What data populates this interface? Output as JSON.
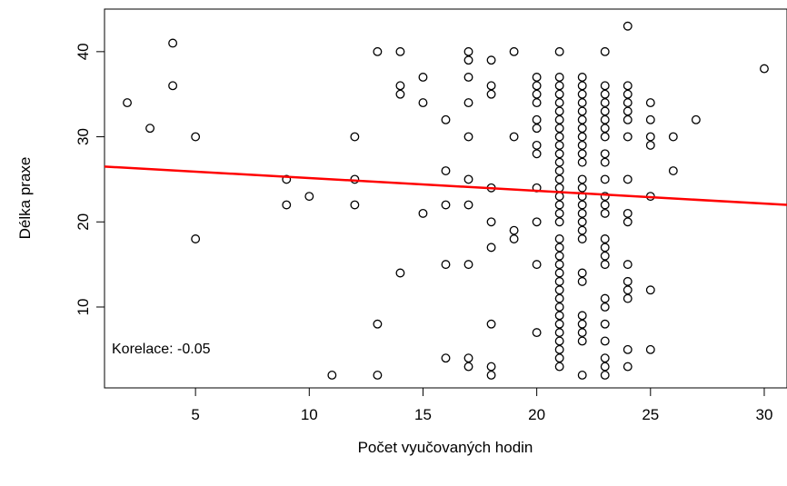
{
  "chart_data": {
    "type": "scatter",
    "xlabel": "Počet vyučovaných hodin",
    "ylabel": "Délka praxe",
    "annotation": "Korelace: -0.05",
    "xlim": [
      1,
      31
    ],
    "ylim": [
      0.5,
      45
    ],
    "xticks": [
      5,
      10,
      15,
      20,
      25,
      30
    ],
    "yticks": [
      10,
      20,
      30,
      40
    ],
    "regression": {
      "color": "#ff0000",
      "y_at_1": 26.5,
      "y_at_31": 22.0
    },
    "points": [
      [
        2,
        34
      ],
      [
        3,
        31
      ],
      [
        4,
        41
      ],
      [
        4,
        36
      ],
      [
        5,
        30
      ],
      [
        5,
        18
      ],
      [
        9,
        25
      ],
      [
        9,
        22
      ],
      [
        10,
        23
      ],
      [
        11,
        2
      ],
      [
        12,
        30
      ],
      [
        12,
        25
      ],
      [
        12,
        22
      ],
      [
        13,
        40
      ],
      [
        13,
        8
      ],
      [
        13,
        2
      ],
      [
        14,
        40
      ],
      [
        14,
        36
      ],
      [
        14,
        35
      ],
      [
        14,
        14
      ],
      [
        15,
        37
      ],
      [
        15,
        34
      ],
      [
        15,
        21
      ],
      [
        16,
        32
      ],
      [
        16,
        26
      ],
      [
        16,
        22
      ],
      [
        16,
        15
      ],
      [
        16,
        4
      ],
      [
        17,
        40
      ],
      [
        17,
        39
      ],
      [
        17,
        37
      ],
      [
        17,
        34
      ],
      [
        17,
        30
      ],
      [
        17,
        25
      ],
      [
        17,
        22
      ],
      [
        17,
        15
      ],
      [
        17,
        4
      ],
      [
        17,
        3
      ],
      [
        18,
        39
      ],
      [
        18,
        36
      ],
      [
        18,
        35
      ],
      [
        18,
        24
      ],
      [
        18,
        20
      ],
      [
        18,
        17
      ],
      [
        18,
        8
      ],
      [
        18,
        3
      ],
      [
        18,
        2
      ],
      [
        19,
        40
      ],
      [
        19,
        30
      ],
      [
        19,
        19
      ],
      [
        19,
        18
      ],
      [
        20,
        37
      ],
      [
        20,
        36
      ],
      [
        20,
        35
      ],
      [
        20,
        34
      ],
      [
        20,
        32
      ],
      [
        20,
        31
      ],
      [
        20,
        29
      ],
      [
        20,
        28
      ],
      [
        20,
        24
      ],
      [
        20,
        20
      ],
      [
        20,
        15
      ],
      [
        20,
        7
      ],
      [
        21,
        40
      ],
      [
        21,
        37
      ],
      [
        21,
        36
      ],
      [
        21,
        35
      ],
      [
        21,
        34
      ],
      [
        21,
        33
      ],
      [
        21,
        32
      ],
      [
        21,
        31
      ],
      [
        21,
        30
      ],
      [
        21,
        29
      ],
      [
        21,
        28
      ],
      [
        21,
        27
      ],
      [
        21,
        26
      ],
      [
        21,
        25
      ],
      [
        21,
        24
      ],
      [
        21,
        23
      ],
      [
        21,
        22
      ],
      [
        21,
        21
      ],
      [
        21,
        20
      ],
      [
        21,
        18
      ],
      [
        21,
        17
      ],
      [
        21,
        16
      ],
      [
        21,
        15
      ],
      [
        21,
        14
      ],
      [
        21,
        13
      ],
      [
        21,
        12
      ],
      [
        21,
        11
      ],
      [
        21,
        10
      ],
      [
        21,
        9
      ],
      [
        21,
        8
      ],
      [
        21,
        7
      ],
      [
        21,
        6
      ],
      [
        21,
        5
      ],
      [
        21,
        4
      ],
      [
        21,
        3
      ],
      [
        22,
        37
      ],
      [
        22,
        36
      ],
      [
        22,
        35
      ],
      [
        22,
        34
      ],
      [
        22,
        33
      ],
      [
        22,
        32
      ],
      [
        22,
        31
      ],
      [
        22,
        30
      ],
      [
        22,
        29
      ],
      [
        22,
        28
      ],
      [
        22,
        27
      ],
      [
        22,
        25
      ],
      [
        22,
        24
      ],
      [
        22,
        23
      ],
      [
        22,
        22
      ],
      [
        22,
        21
      ],
      [
        22,
        20
      ],
      [
        22,
        19
      ],
      [
        22,
        18
      ],
      [
        22,
        14
      ],
      [
        22,
        13
      ],
      [
        22,
        9
      ],
      [
        22,
        8
      ],
      [
        22,
        7
      ],
      [
        22,
        6
      ],
      [
        22,
        2
      ],
      [
        23,
        40
      ],
      [
        23,
        36
      ],
      [
        23,
        35
      ],
      [
        23,
        34
      ],
      [
        23,
        33
      ],
      [
        23,
        32
      ],
      [
        23,
        31
      ],
      [
        23,
        30
      ],
      [
        23,
        28
      ],
      [
        23,
        27
      ],
      [
        23,
        25
      ],
      [
        23,
        23
      ],
      [
        23,
        22
      ],
      [
        23,
        21
      ],
      [
        23,
        18
      ],
      [
        23,
        17
      ],
      [
        23,
        16
      ],
      [
        23,
        15
      ],
      [
        23,
        11
      ],
      [
        23,
        10
      ],
      [
        23,
        8
      ],
      [
        23,
        6
      ],
      [
        23,
        4
      ],
      [
        23,
        3
      ],
      [
        23,
        2
      ],
      [
        24,
        43
      ],
      [
        24,
        36
      ],
      [
        24,
        35
      ],
      [
        24,
        34
      ],
      [
        24,
        33
      ],
      [
        24,
        32
      ],
      [
        24,
        30
      ],
      [
        24,
        25
      ],
      [
        24,
        21
      ],
      [
        24,
        20
      ],
      [
        24,
        15
      ],
      [
        24,
        13
      ],
      [
        24,
        12
      ],
      [
        24,
        11
      ],
      [
        24,
        5
      ],
      [
        24,
        3
      ],
      [
        25,
        34
      ],
      [
        25,
        32
      ],
      [
        25,
        30
      ],
      [
        25,
        29
      ],
      [
        25,
        23
      ],
      [
        25,
        12
      ],
      [
        25,
        5
      ],
      [
        26,
        30
      ],
      [
        26,
        26
      ],
      [
        27,
        32
      ],
      [
        30,
        38
      ]
    ]
  }
}
